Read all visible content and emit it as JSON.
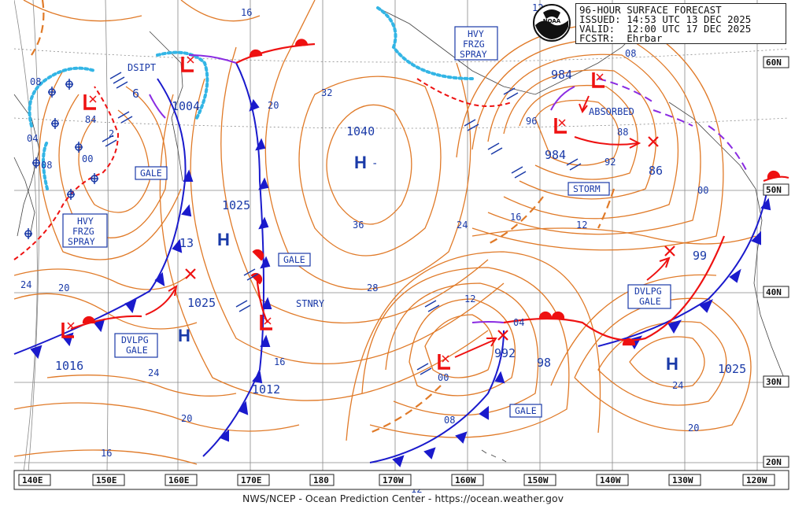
{
  "header": {
    "product": "96-HOUR SURFACE FORECAST",
    "issued": "ISSUED: 14:53 UTC 13 DEC 2025",
    "valid": "VALID:  12:00 UTC 17 DEC 2025",
    "forecaster": "FCSTR:  Ehrbar",
    "logo_text": "NOAA"
  },
  "footer": {
    "credit": "NWS/NCEP - Ocean Prediction Center - https://ocean.weather.gov"
  },
  "colors": {
    "isobar": "#e07a28",
    "front_cold": "#1a1acc",
    "front_warm": "#ee1111",
    "occluded": "#8a2be2",
    "ice": "#33b5e5",
    "text_blue": "#1a3aa8",
    "grid": "#888888",
    "label_box": "#1a3aa8"
  },
  "longitude_labels": [
    "140E",
    "150E",
    "160E",
    "170E",
    "180",
    "170W",
    "160W",
    "150W",
    "140W",
    "130W",
    "120W"
  ],
  "latitude_labels": [
    "60N",
    "50N",
    "40N",
    "30N",
    "20N"
  ],
  "pressure_centers": [
    {
      "type": "H",
      "value": "1040"
    },
    {
      "type": "H",
      "value": "1025"
    },
    {
      "type": "H",
      "value": "1025"
    },
    {
      "type": "H",
      "value": "1025"
    },
    {
      "type": "L",
      "value": "1004"
    },
    {
      "type": "L",
      "value": "984"
    },
    {
      "type": "L",
      "value": "984"
    },
    {
      "type": "L",
      "value": "1012"
    },
    {
      "type": "L",
      "value": "992"
    },
    {
      "type": "L",
      "value": "1016"
    }
  ],
  "labels_big": {
    "p1040": "1040",
    "p1025a": "1025",
    "p1025b": "1025",
    "p1025c": "1025",
    "p1004": "1004",
    "p984a": "984",
    "p984b": "984",
    "p1012": "1012",
    "p992": "992",
    "p1016": "1016",
    "p99": "99",
    "p98": "98",
    "p86": "86",
    "p13": "13",
    "p6": "6",
    "h": "H"
  },
  "isobar_labels": {
    "i16a": "16",
    "i32": "32",
    "i20a": "20",
    "i36": "36",
    "i24a": "24",
    "i28": "28",
    "i12a": "12",
    "i16b": "16",
    "i24b": "24",
    "i20b": "20",
    "i16c": "16",
    "i24c": "24",
    "i20c": "20",
    "i08a": "08",
    "i04a": "04",
    "i08b": "08",
    "i84": "84",
    "i00a": "00",
    "i2": "2",
    "i96": "96",
    "i92": "92",
    "i88": "88",
    "i00b": "00",
    "i12b": "12",
    "i16d": "16",
    "i08c": "08",
    "i04b": "04",
    "i00c": "00",
    "i12c": "12",
    "i08d": "08",
    "i24d": "24",
    "i20d": "20",
    "i12d": "12"
  },
  "boxed_labels": {
    "hvy1": [
      "HVY",
      "FRZG",
      "SPRAY"
    ],
    "hvy2": [
      "HVY",
      "FRZG",
      "SPRAY"
    ],
    "gale1": "GALE",
    "gale2": "GALE",
    "gale3": "GALE",
    "storm": "STORM",
    "dvlpg1": [
      "DVLPG",
      "GALE"
    ],
    "dvlpg2": [
      "DVLPG",
      "GALE"
    ]
  },
  "plain_labels": {
    "dsipt": "DSIPT",
    "absorbed": "ABSORBED",
    "stnry": "STNRY",
    "hdash": "-"
  }
}
